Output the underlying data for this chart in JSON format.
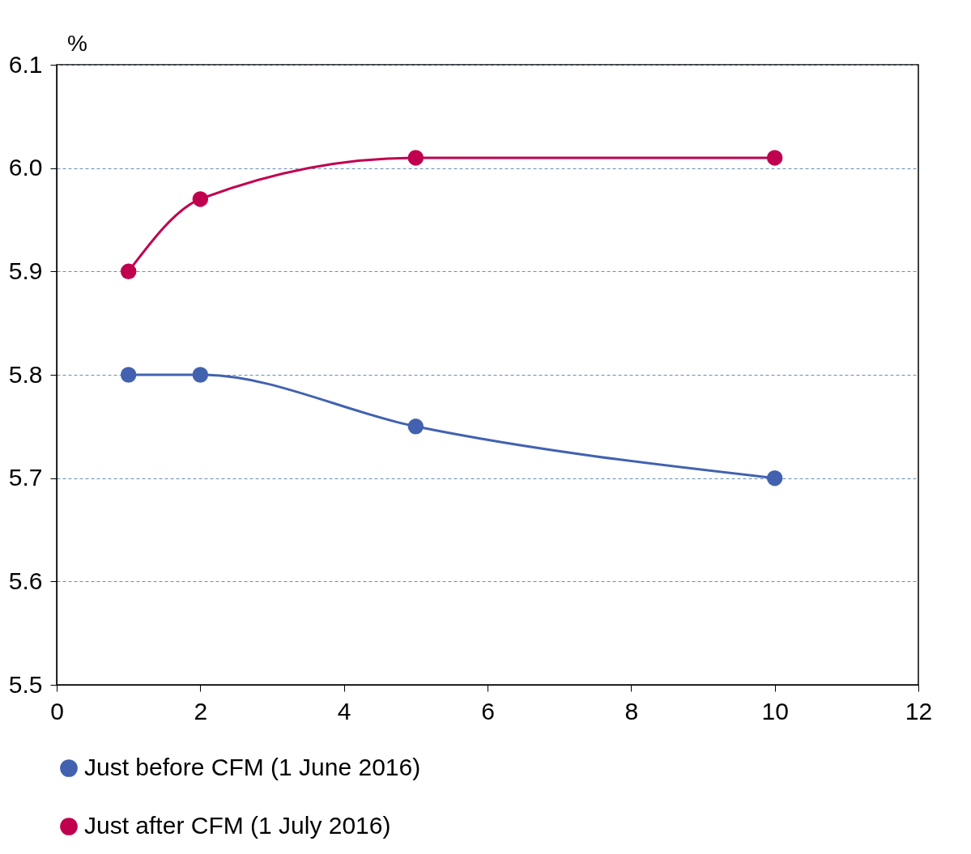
{
  "chart_data": {
    "type": "line",
    "ylabel": "%",
    "x": [
      1,
      2,
      5,
      10
    ],
    "series": [
      {
        "name": "Just before CFM (1 June 2016)",
        "color": "#4262b0",
        "values": [
          5.8,
          5.8,
          5.75,
          5.7
        ]
      },
      {
        "name": "Just after CFM (1 July 2016)",
        "color": "#c0004f",
        "values": [
          5.9,
          5.97,
          6.01,
          6.01
        ]
      }
    ],
    "xlim": [
      0,
      12
    ],
    "xticks": [
      0,
      2,
      4,
      6,
      8,
      10,
      12
    ],
    "ylim": [
      5.5,
      6.1
    ],
    "yticks": [
      {
        "value": 5.5,
        "label": "5.5"
      },
      {
        "value": 5.6,
        "label": "5.6"
      },
      {
        "value": 5.7,
        "label": "5.7"
      },
      {
        "value": 5.8,
        "label": "5.8"
      },
      {
        "value": 5.9,
        "label": "5.9"
      },
      {
        "value": 6.0,
        "label": "6.0"
      },
      {
        "value": 6.1,
        "label": "6.1"
      }
    ],
    "grid": "y",
    "legend": "bottom",
    "marker": "circle",
    "line_style": "solid"
  }
}
